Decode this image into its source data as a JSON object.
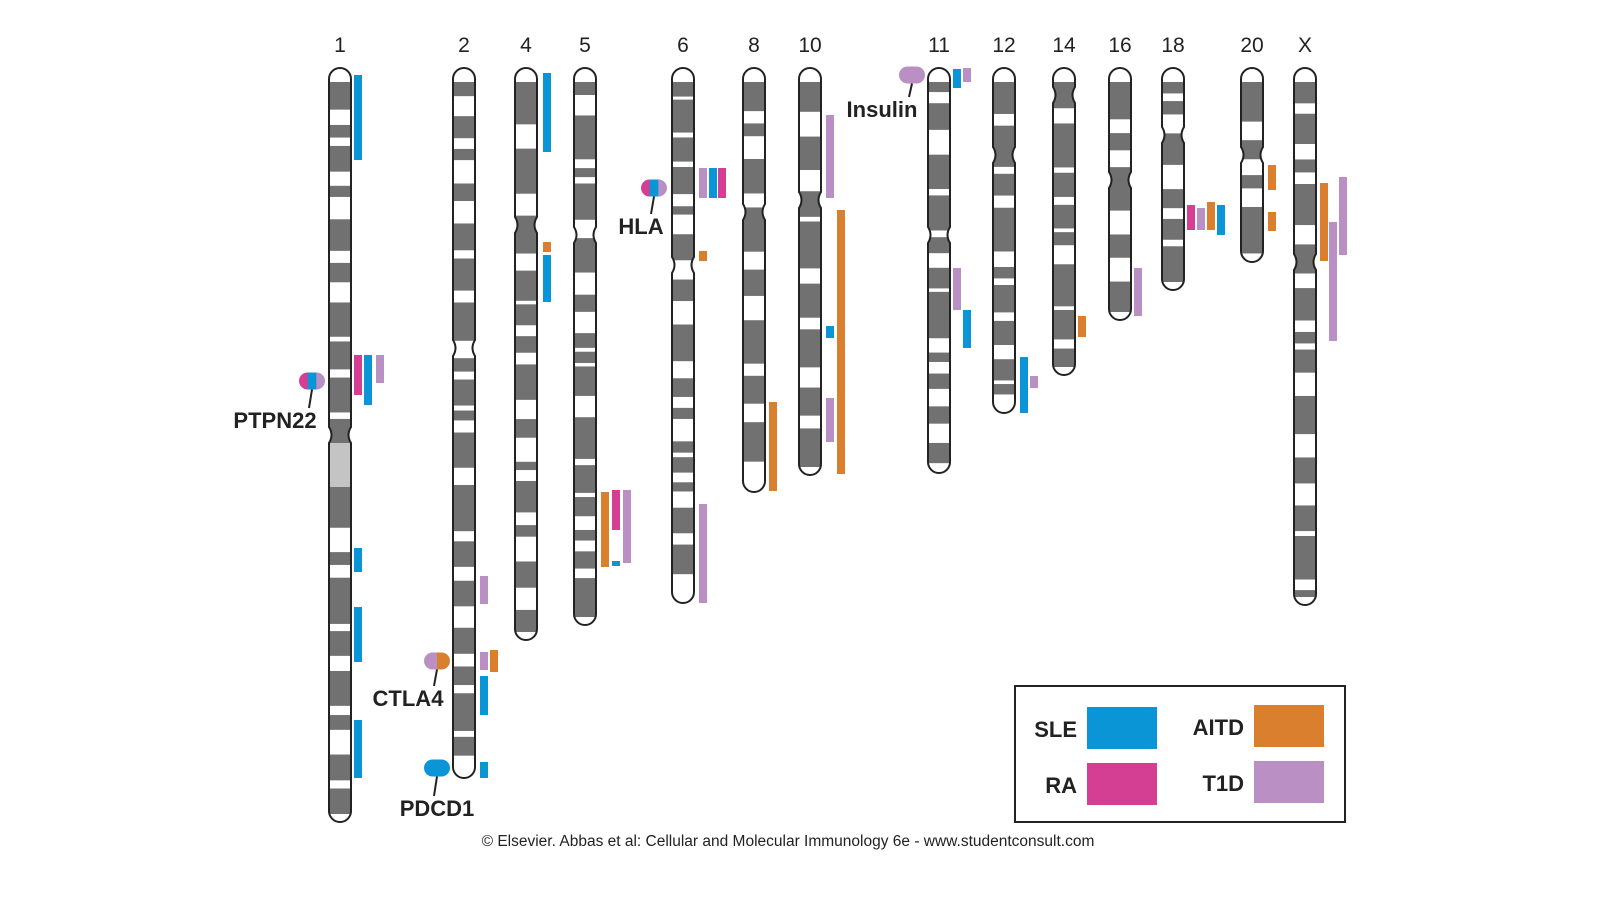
{
  "colors": {
    "SLE": "#0a96d6",
    "RA": "#d43f93",
    "AITD": "#d97f2e",
    "T1D": "#b98fc4",
    "chromosome": "#717171"
  },
  "chromosomes": [
    "1",
    "2",
    "4",
    "5",
    "6",
    "8",
    "10",
    "11",
    "12",
    "14",
    "16",
    "18",
    "20",
    "X"
  ],
  "genes": [
    {
      "name": "PTPN22",
      "chromosome": "1",
      "diseases": [
        "RA",
        "SLE",
        "T1D"
      ]
    },
    {
      "name": "HLA",
      "chromosome": "6",
      "diseases": [
        "RA",
        "SLE",
        "T1D"
      ]
    },
    {
      "name": "Insulin",
      "chromosome": "11",
      "diseases": [
        "T1D"
      ]
    },
    {
      "name": "CTLA4",
      "chromosome": "2",
      "diseases": [
        "T1D",
        "AITD"
      ]
    },
    {
      "name": "PDCD1",
      "chromosome": "2",
      "diseases": [
        "SLE"
      ]
    }
  ],
  "legend": [
    {
      "key": "SLE",
      "label": "SLE"
    },
    {
      "key": "RA",
      "label": "RA"
    },
    {
      "key": "AITD",
      "label": "AITD"
    },
    {
      "key": "T1D",
      "label": "T1D"
    }
  ],
  "copyright": "© Elsevier. Abbas et al: Cellular and Molecular Immunology 6e - www.studentconsult.com"
}
